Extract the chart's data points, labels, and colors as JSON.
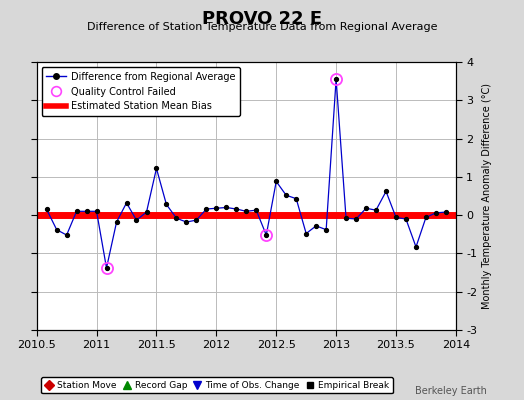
{
  "title": "PROVO 22 E",
  "subtitle": "Difference of Station Temperature Data from Regional Average",
  "ylabel_right": "Monthly Temperature Anomaly Difference (°C)",
  "footer": "Berkeley Earth",
  "xlim": [
    2010.5,
    2014.0
  ],
  "ylim": [
    -3,
    4
  ],
  "yticks": [
    -3,
    -2,
    -1,
    0,
    1,
    2,
    3,
    4
  ],
  "xticks": [
    2010.5,
    2011.0,
    2011.5,
    2012.0,
    2012.5,
    2013.0,
    2013.5,
    2014.0
  ],
  "xtick_labels": [
    "2010.5",
    "2011",
    "2011.5",
    "2012",
    "2012.5",
    "2013",
    "2013.5",
    "2014"
  ],
  "bias_line_color": "#ff0000",
  "bias_line_y": 0.0,
  "main_line_color": "#0000cc",
  "main_marker_color": "#000000",
  "qc_marker_color": "#ff44ff",
  "background_color": "#d8d8d8",
  "plot_bg_color": "#ffffff",
  "grid_color": "#bbbbbb",
  "data_x": [
    2010.583,
    2010.667,
    2010.75,
    2010.833,
    2010.917,
    2011.0,
    2011.083,
    2011.167,
    2011.25,
    2011.333,
    2011.417,
    2011.5,
    2011.583,
    2011.667,
    2011.75,
    2011.833,
    2011.917,
    2012.0,
    2012.083,
    2012.167,
    2012.25,
    2012.333,
    2012.417,
    2012.5,
    2012.583,
    2012.667,
    2012.75,
    2012.833,
    2012.917,
    2013.0,
    2013.083,
    2013.167,
    2013.25,
    2013.333,
    2013.417,
    2013.5,
    2013.583,
    2013.667,
    2013.75,
    2013.833,
    2013.917
  ],
  "data_y": [
    0.15,
    -0.38,
    -0.52,
    0.1,
    0.1,
    0.1,
    -1.38,
    -0.18,
    0.32,
    -0.13,
    0.08,
    1.22,
    0.28,
    -0.08,
    -0.18,
    -0.13,
    0.16,
    0.18,
    0.2,
    0.16,
    0.1,
    0.13,
    -0.52,
    0.88,
    0.52,
    0.43,
    -0.48,
    -0.28,
    -0.38,
    3.55,
    -0.08,
    -0.1,
    0.18,
    0.13,
    0.62,
    -0.06,
    -0.1,
    -0.83,
    -0.06,
    0.06,
    0.08
  ],
  "qc_points_x": [
    2011.083,
    2012.417,
    2013.0
  ],
  "qc_points_y": [
    -1.38,
    -0.52,
    3.55
  ]
}
